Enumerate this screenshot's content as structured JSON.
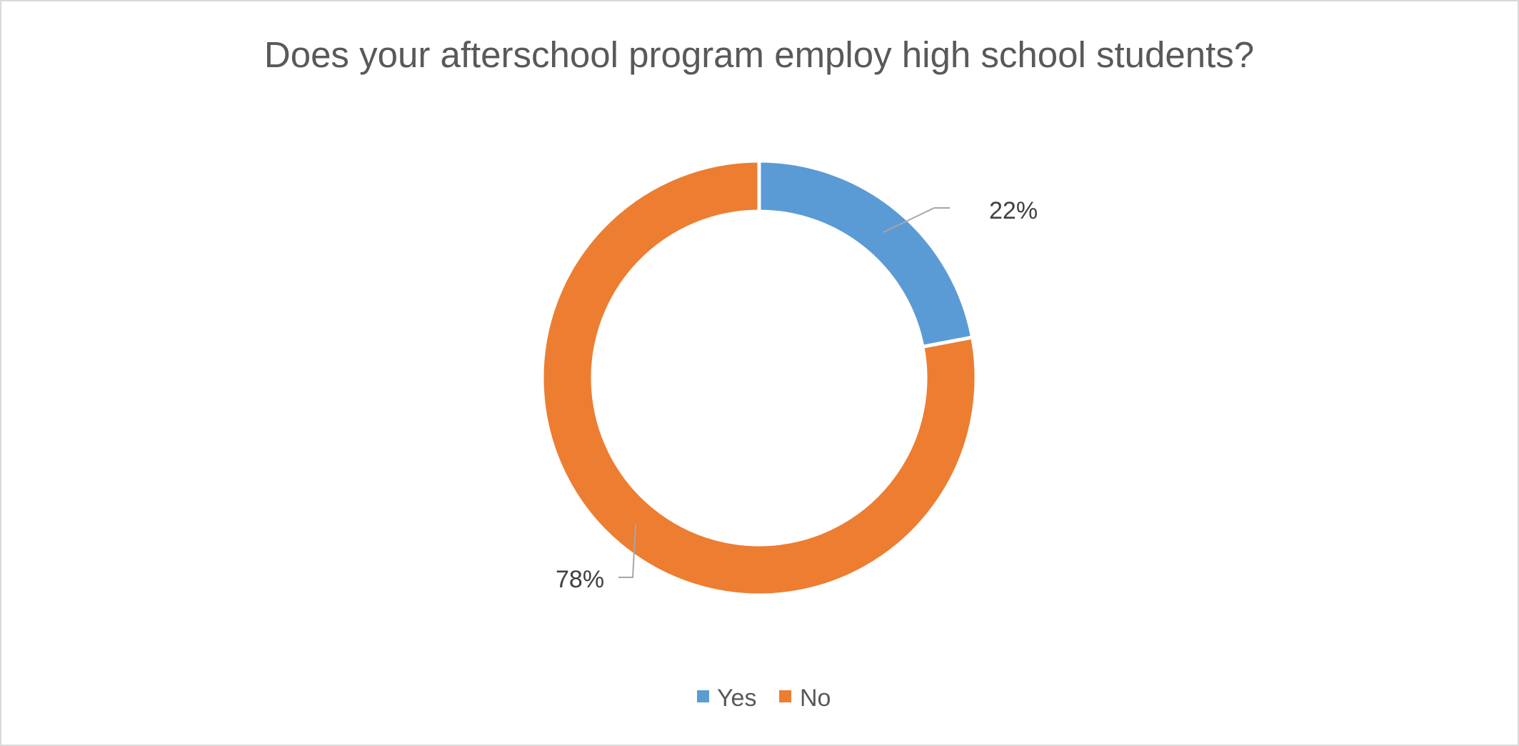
{
  "chart_data": {
    "type": "pie",
    "variant": "doughnut",
    "title": "Does your afterschool program employ high school students?",
    "categories": [
      "Yes",
      "No"
    ],
    "values": [
      22,
      78
    ],
    "data_labels": [
      "22%",
      "78%"
    ],
    "colors": [
      "#5b9bd5",
      "#ed7d31"
    ],
    "legend": {
      "position": "bottom",
      "entries": [
        "Yes",
        "No"
      ]
    }
  }
}
